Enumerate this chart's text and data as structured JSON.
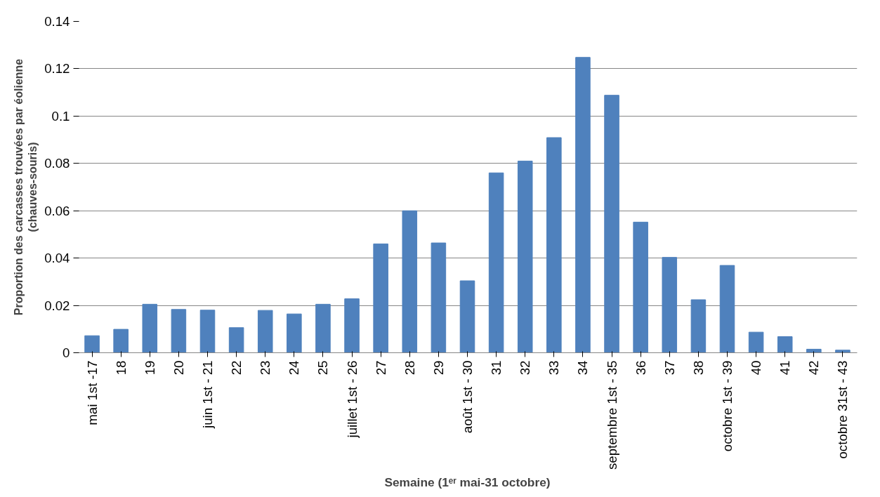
{
  "chart_data": {
    "type": "bar",
    "xlabel": "Semaine (1ᵉʳ mai-31 octobre)",
    "ylabel": "Proportion des carcasses trouvées par éolienne (chauves-souris)",
    "categories": [
      "mai 1st -17",
      "18",
      "19",
      "20",
      "juin 1st - 21",
      "22",
      "23",
      "24",
      "25",
      "juillet 1st - 26",
      "27",
      "28",
      "29",
      "août 1st - 30",
      "31",
      "32",
      "33",
      "34",
      "septembre 1st - 35",
      "36",
      "37",
      "38",
      "octobre 1st - 39",
      "40",
      "41",
      "42",
      "octobre 31st - 43"
    ],
    "values": [
      0.0072,
      0.0099,
      0.0205,
      0.0183,
      0.018,
      0.0106,
      0.0179,
      0.0164,
      0.0205,
      0.0228,
      0.046,
      0.06,
      0.0464,
      0.0304,
      0.076,
      0.081,
      0.0909,
      0.1248,
      0.1088,
      0.0552,
      0.0403,
      0.0224,
      0.0369,
      0.0087,
      0.0068,
      0.0015,
      0.0011
    ],
    "color": "#4f81bd",
    "ylim": [
      0,
      0.14
    ],
    "yticks": [
      {
        "value": 0,
        "label": "0"
      },
      0.02,
      0.04,
      0.06,
      0.08,
      {
        "value": 0.1,
        "label": "0.1"
      },
      0.12,
      0.14
    ],
    "grid": "y"
  }
}
